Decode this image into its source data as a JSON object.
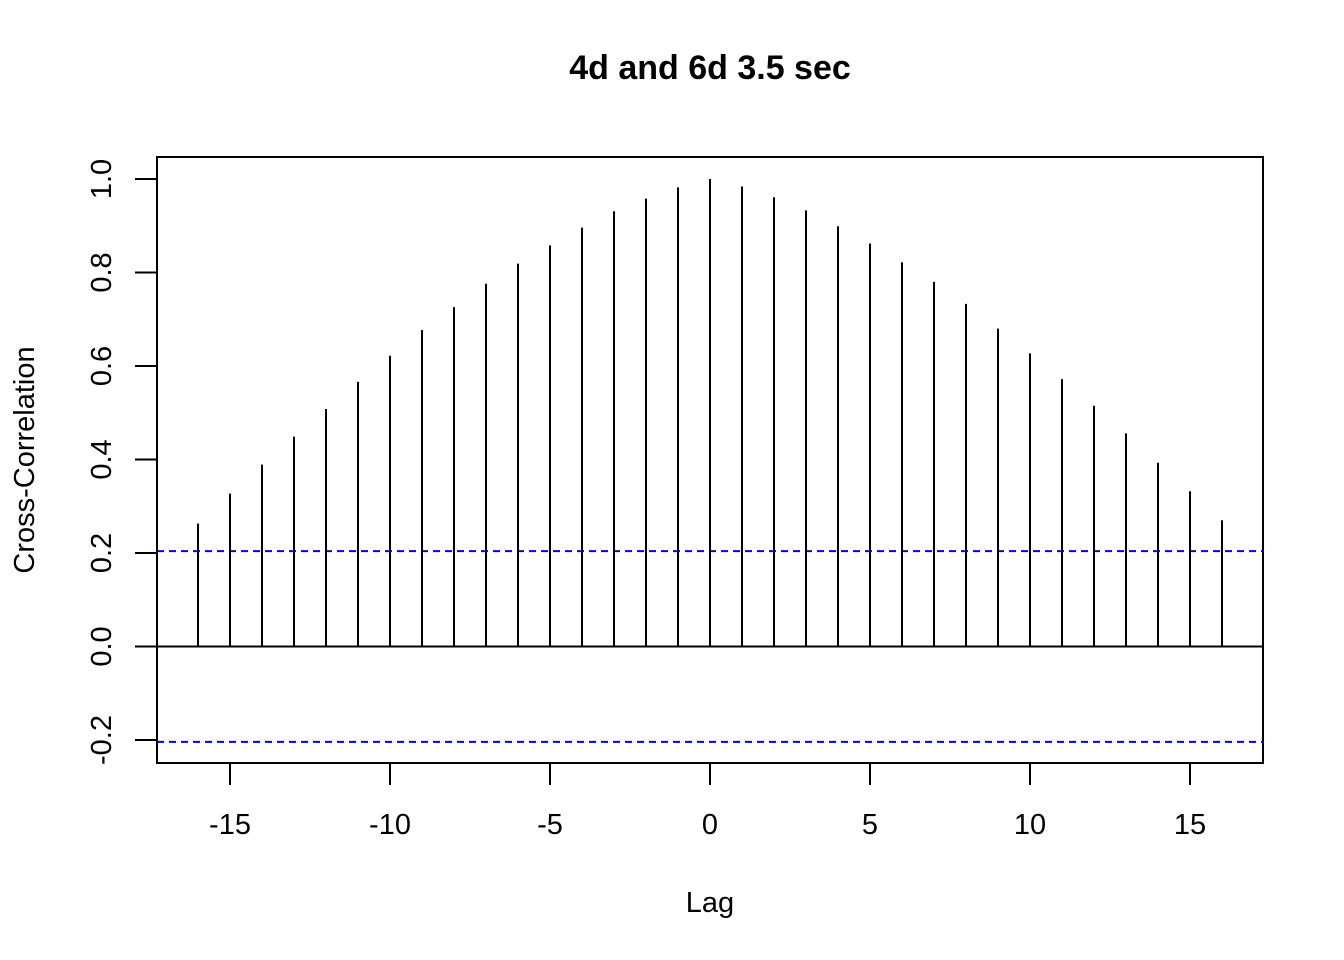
{
  "chart_data": {
    "type": "bar",
    "title": "4d and 6d 3.5 sec",
    "xlabel": "Lag",
    "ylabel": "Cross-Correlation",
    "xlim": [
      -17.3,
      17.3
    ],
    "ylim": [
      -0.25,
      1.05
    ],
    "x_ticks": [
      -15,
      -10,
      -5,
      0,
      5,
      10,
      15
    ],
    "x_tick_labels": [
      "-15",
      "-10",
      "-5",
      "0",
      "5",
      "10",
      "15"
    ],
    "y_ticks": [
      -0.2,
      0.0,
      0.2,
      0.4,
      0.6,
      0.8,
      1.0
    ],
    "y_tick_labels": [
      "-0.2",
      "0.0",
      "0.2",
      "0.4",
      "0.6",
      "0.8",
      "1.0"
    ],
    "lags": [
      -16,
      -15,
      -14,
      -13,
      -12,
      -11,
      -10,
      -9,
      -8,
      -7,
      -6,
      -5,
      -4,
      -3,
      -2,
      -1,
      0,
      1,
      2,
      3,
      4,
      5,
      6,
      7,
      8,
      9,
      10,
      11,
      12,
      13,
      14,
      15,
      16
    ],
    "values": [
      0.263,
      0.327,
      0.389,
      0.449,
      0.508,
      0.566,
      0.622,
      0.677,
      0.726,
      0.776,
      0.819,
      0.858,
      0.896,
      0.931,
      0.958,
      0.982,
      1.0,
      0.984,
      0.961,
      0.933,
      0.899,
      0.862,
      0.822,
      0.78,
      0.733,
      0.68,
      0.627,
      0.572,
      0.515,
      0.456,
      0.393,
      0.332,
      0.27
    ],
    "confidence_bounds": [
      0.204,
      -0.204
    ],
    "grid": false,
    "colors": {
      "bars": "#000000",
      "confidence": "#0000ff",
      "zero_line": "#000000"
    }
  }
}
